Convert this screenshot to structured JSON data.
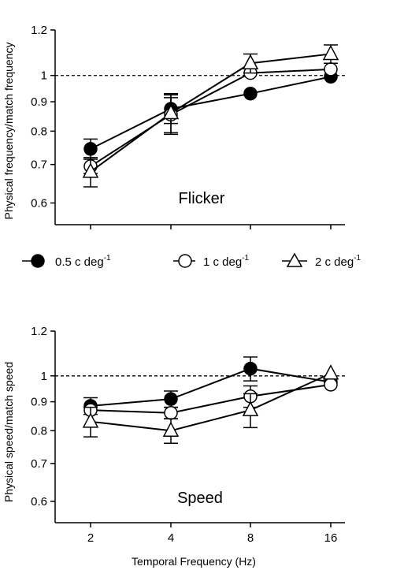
{
  "legend": {
    "items": [
      {
        "label": "0.5 c deg",
        "sup": "-1",
        "marker": "filled-circle"
      },
      {
        "label": "1 c deg",
        "sup": "-1",
        "marker": "open-circle"
      },
      {
        "label": "2 c deg",
        "sup": "-1",
        "marker": "open-triangle"
      }
    ]
  },
  "chart_data": [
    {
      "type": "line",
      "panel_label": "Flicker",
      "ylabel": "Physical frequency/match frequency",
      "xlabel": "",
      "y_scale": "log",
      "ylim": [
        0.55,
        1.2
      ],
      "yticks": [
        "0.6",
        "0.7",
        "0.8",
        "0.9",
        "1",
        "1.2"
      ],
      "ytick_values": [
        0.6,
        0.7,
        0.8,
        0.9,
        1,
        1.2
      ],
      "x_scale": "log2",
      "x": [
        2,
        4,
        8,
        16
      ],
      "xticks": [],
      "reference_line": 1,
      "series": [
        {
          "marker": "filled-circle",
          "values": [
            0.745,
            0.875,
            0.93,
            0.995
          ],
          "err": [
            0.03,
            0.05,
            0.0,
            0.0
          ]
        },
        {
          "marker": "open-circle",
          "values": [
            0.695,
            0.855,
            1.01,
            1.025
          ],
          "err": [
            0.02,
            0.06,
            0.0,
            0.0
          ]
        },
        {
          "marker": "open-triangle",
          "values": [
            0.68,
            0.86,
            1.05,
            1.09
          ],
          "err": [
            0.04,
            0.07,
            0.04,
            0.04
          ]
        }
      ]
    },
    {
      "type": "line",
      "panel_label": "Speed",
      "ylabel": "Physical speed/match speed",
      "xlabel": "Temporal Frequency (Hz)",
      "y_scale": "log",
      "ylim": [
        0.55,
        1.2
      ],
      "yticks": [
        "0.6",
        "0.7",
        "0.8",
        "0.9",
        "1",
        "1.2"
      ],
      "ytick_values": [
        0.6,
        0.7,
        0.8,
        0.9,
        1,
        1.2
      ],
      "x_scale": "log2",
      "x": [
        2,
        4,
        8,
        16
      ],
      "xticks": [
        "2",
        "4",
        "8",
        "16"
      ],
      "reference_line": 1,
      "series": [
        {
          "marker": "filled-circle",
          "values": [
            0.885,
            0.91,
            1.03,
            0.975
          ],
          "err": [
            0.03,
            0.03,
            0.05,
            0.0
          ]
        },
        {
          "marker": "open-circle",
          "values": [
            0.87,
            0.86,
            0.92,
            0.965
          ],
          "err": [
            0.0,
            0.02,
            0.04,
            0.0
          ]
        },
        {
          "marker": "open-triangle",
          "values": [
            0.83,
            0.8,
            0.87,
            1.01
          ],
          "err": [
            0.05,
            0.04,
            0.06,
            0.0
          ]
        }
      ]
    }
  ]
}
